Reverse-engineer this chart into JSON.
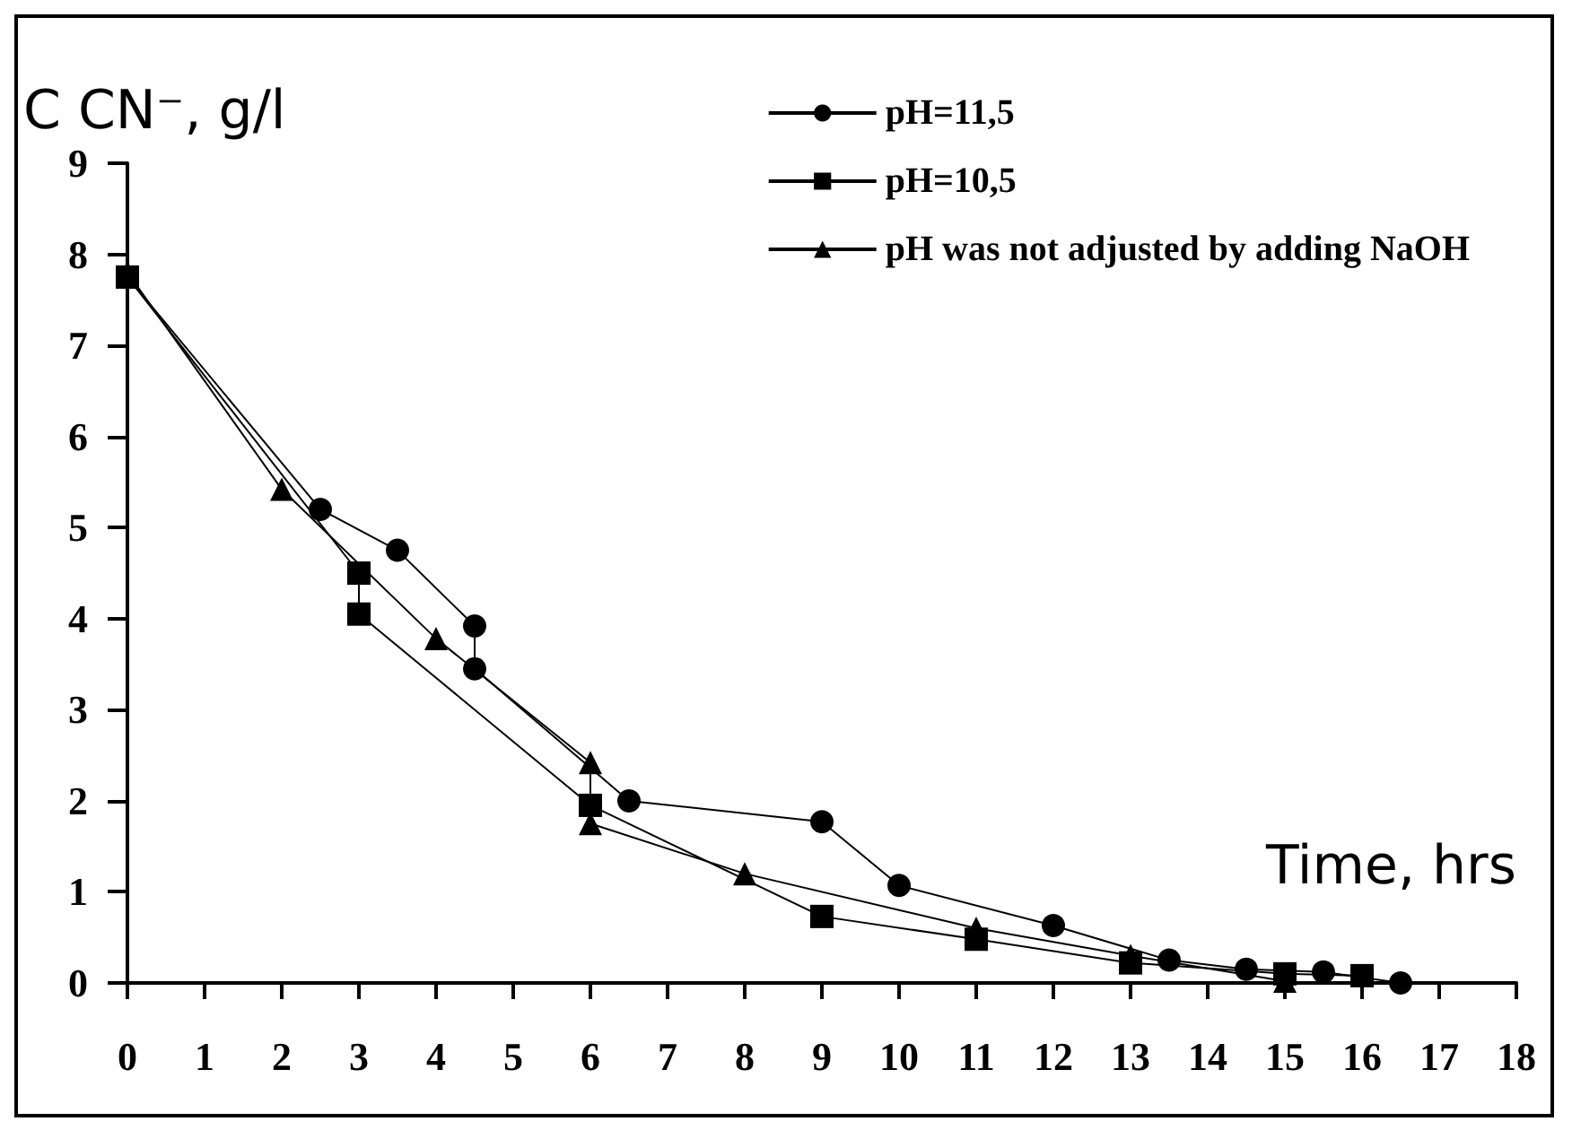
{
  "chart_data": {
    "type": "line",
    "xlabel": "Time, hrs",
    "ylabel": "C CN⁻, g/l",
    "xlim": [
      0,
      18
    ],
    "xticks": [
      0,
      1,
      2,
      3,
      4,
      5,
      6,
      7,
      8,
      9,
      10,
      11,
      12,
      13,
      14,
      15,
      16,
      17,
      18
    ],
    "ylim": [
      0,
      9
    ],
    "yticks": [
      0,
      1,
      2,
      3,
      4,
      5,
      6,
      7,
      8,
      9
    ],
    "grid": false,
    "legend": "top right",
    "series": [
      {
        "name": "pH=11,5",
        "color": "#000000",
        "marker": "circle",
        "x": [
          0,
          2.5,
          3.5,
          4.5,
          4.5,
          6.5,
          9,
          10,
          12,
          13.5,
          14.5,
          15.5,
          16.5
        ],
        "values": [
          7.75,
          5.2,
          4.75,
          3.92,
          3.45,
          2.0,
          1.77,
          1.07,
          0.63,
          0.25,
          0.15,
          0.12,
          0
        ]
      },
      {
        "name": "pH=10,5",
        "color": "#000000",
        "marker": "square",
        "x": [
          0,
          3,
          3,
          6,
          9,
          11,
          13,
          15,
          16
        ],
        "values": [
          7.75,
          4.5,
          4.05,
          1.95,
          0.73,
          0.48,
          0.22,
          0.1,
          0.08
        ]
      },
      {
        "name": "pH was not adjusted by adding NaOH",
        "color": "#000000",
        "marker": "triangle",
        "x": [
          0,
          2,
          4,
          6,
          6,
          8,
          11,
          13,
          15
        ],
        "values": [
          7.8,
          5.42,
          3.78,
          2.42,
          1.75,
          1.2,
          0.6,
          0.3,
          0.02
        ]
      }
    ]
  }
}
